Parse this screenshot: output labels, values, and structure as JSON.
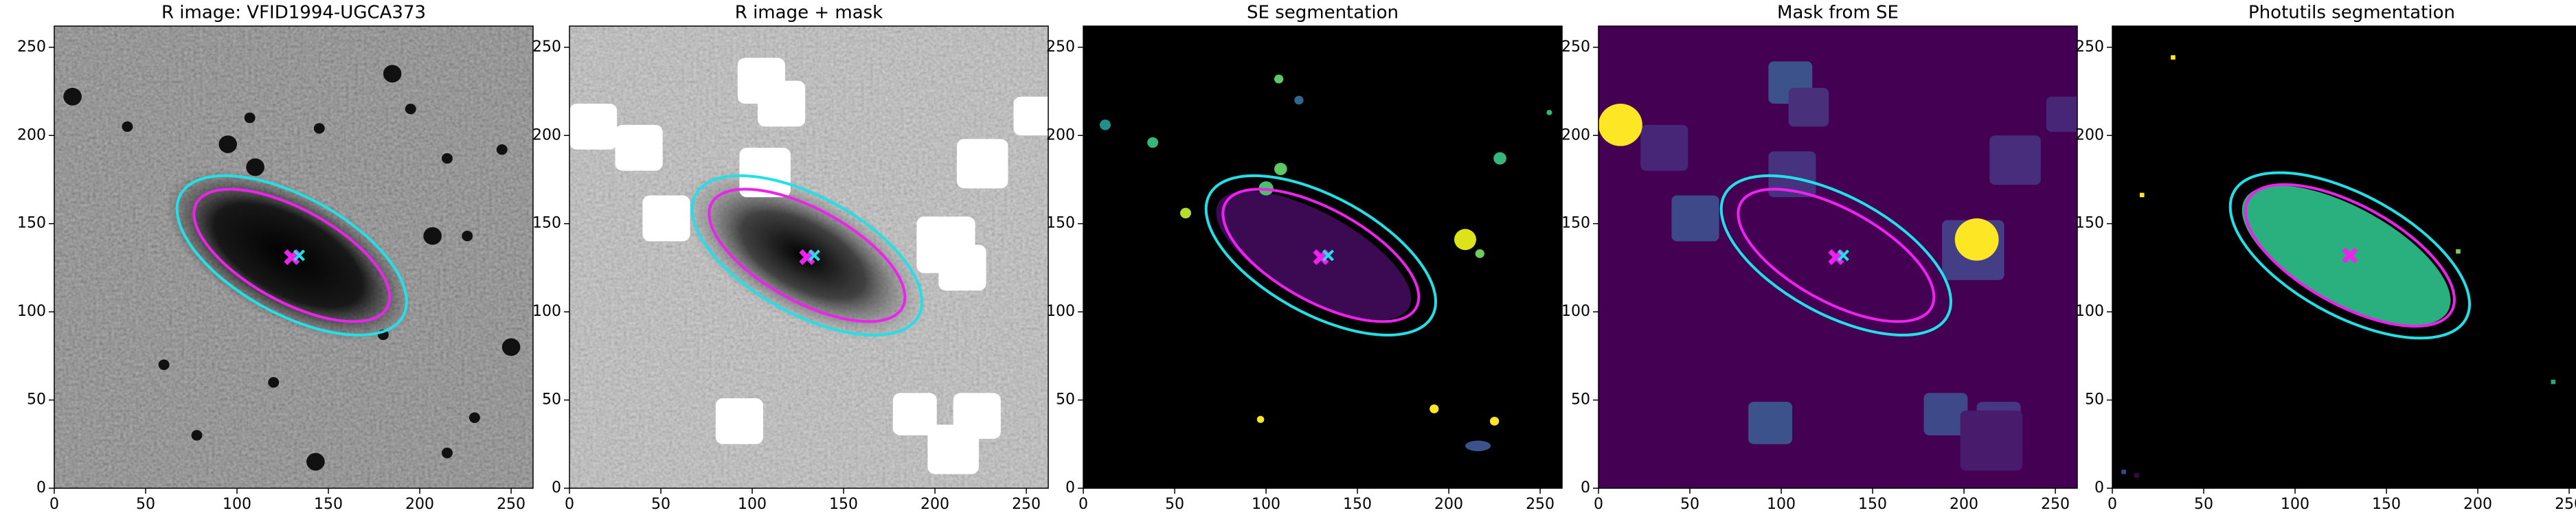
{
  "chart_data": [
    {
      "type": "image",
      "title": "R image: VFID1994-UGCA373",
      "xlim": [
        0,
        262
      ],
      "ylim": [
        0,
        262
      ],
      "xticks": [
        0,
        50,
        100,
        150,
        200,
        250
      ],
      "yticks": [
        0,
        50,
        100,
        150,
        200,
        250
      ],
      "ellipses": [
        {
          "cx": 130,
          "cy": 132,
          "a": 70,
          "b": 33,
          "angle": -30,
          "color": "#22e0e8"
        },
        {
          "cx": 130,
          "cy": 132,
          "a": 60,
          "b": 26,
          "angle": -30,
          "color": "#ee22ee"
        }
      ],
      "markers": [
        {
          "x": 130,
          "y": 131,
          "color": "#ee22ee"
        },
        {
          "x": 134,
          "y": 132,
          "color": "#22e0e8"
        }
      ]
    },
    {
      "type": "image",
      "title": "R image + mask",
      "xlim": [
        0,
        262
      ],
      "ylim": [
        0,
        262
      ],
      "xticks": [
        0,
        50,
        100,
        150,
        200,
        250
      ],
      "yticks": [
        0,
        50,
        100,
        150,
        200,
        250
      ],
      "ellipses": [
        {
          "cx": 130,
          "cy": 132,
          "a": 70,
          "b": 33,
          "angle": -30,
          "color": "#22e0e8"
        },
        {
          "cx": 130,
          "cy": 132,
          "a": 60,
          "b": 26,
          "angle": -30,
          "color": "#ee22ee"
        }
      ],
      "markers": [
        {
          "x": 130,
          "y": 131,
          "color": "#ee22ee"
        },
        {
          "x": 134,
          "y": 132,
          "color": "#22e0e8"
        }
      ]
    },
    {
      "type": "image",
      "title": "SE segmentation",
      "xlim": [
        0,
        262
      ],
      "ylim": [
        0,
        262
      ],
      "xticks": [
        0,
        50,
        100,
        150,
        200,
        250
      ],
      "yticks": [
        0,
        50,
        100,
        150,
        200,
        250
      ],
      "ellipses": [
        {
          "cx": 130,
          "cy": 132,
          "a": 70,
          "b": 33,
          "angle": -30,
          "color": "#22e0e8"
        },
        {
          "cx": 130,
          "cy": 132,
          "a": 60,
          "b": 26,
          "angle": -30,
          "color": "#ee22ee"
        }
      ],
      "markers": [
        {
          "x": 130,
          "y": 131,
          "color": "#ee22ee"
        },
        {
          "x": 134,
          "y": 132,
          "color": "#22e0e8"
        }
      ]
    },
    {
      "type": "image",
      "title": "Mask from SE",
      "xlim": [
        0,
        262
      ],
      "ylim": [
        0,
        262
      ],
      "xticks": [
        0,
        50,
        100,
        150,
        200,
        250
      ],
      "yticks": [
        0,
        50,
        100,
        150,
        200,
        250
      ],
      "ellipses": [
        {
          "cx": 130,
          "cy": 132,
          "a": 70,
          "b": 33,
          "angle": -30,
          "color": "#22e0e8"
        },
        {
          "cx": 130,
          "cy": 132,
          "a": 60,
          "b": 26,
          "angle": -30,
          "color": "#ee22ee"
        }
      ],
      "markers": [
        {
          "x": 130,
          "y": 131,
          "color": "#ee22ee"
        },
        {
          "x": 134,
          "y": 132,
          "color": "#22e0e8"
        }
      ]
    },
    {
      "type": "image",
      "title": "Photutils segmentation",
      "xlim": [
        0,
        262
      ],
      "ylim": [
        0,
        262
      ],
      "xticks": [
        0,
        50,
        100,
        150,
        200,
        250
      ],
      "yticks": [
        0,
        50,
        100,
        150,
        200,
        250
      ],
      "ellipses": [
        {
          "cx": 130,
          "cy": 132,
          "a": 73,
          "b": 34,
          "angle": -30,
          "color": "#22e0e8"
        },
        {
          "cx": 130,
          "cy": 132,
          "a": 64,
          "b": 28,
          "angle": -30,
          "color": "#ee22ee"
        }
      ],
      "markers": [
        {
          "x": 130,
          "y": 132,
          "color": "#ee22ee"
        }
      ]
    }
  ]
}
